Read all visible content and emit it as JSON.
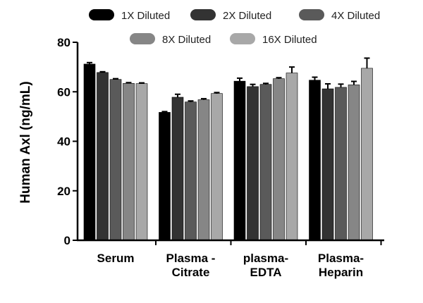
{
  "chart_data": {
    "type": "bar",
    "title": "",
    "xlabel": "",
    "ylabel": "Human Axl (ng/mL)",
    "ylim": [
      0,
      80
    ],
    "yticks": [
      0,
      20,
      40,
      60,
      80
    ],
    "grid": false,
    "legend_position": "top",
    "categories": [
      [
        "Serum"
      ],
      [
        "Plasma -",
        "Citrate"
      ],
      [
        "plasma-",
        "EDTA"
      ],
      [
        "Plasma-",
        "Heparin"
      ]
    ],
    "series": [
      {
        "name": "1X Diluted",
        "color": "#000000",
        "values": [
          71.2,
          51.7,
          64.3,
          64.7
        ],
        "errors": [
          0.6,
          0.3,
          1.2,
          1.2
        ]
      },
      {
        "name": "2X Diluted",
        "color": "#333333",
        "values": [
          67.8,
          57.8,
          62.1,
          61.2
        ],
        "errors": [
          0.3,
          1.2,
          0.9,
          2.0
        ]
      },
      {
        "name": "4X Diluted",
        "color": "#5a5a5a",
        "values": [
          65.0,
          55.9,
          63.0,
          61.8
        ],
        "errors": [
          0.3,
          0.4,
          0.4,
          1.3
        ]
      },
      {
        "name": "8X Diluted",
        "color": "#868686",
        "values": [
          63.4,
          56.8,
          65.3,
          62.8
        ],
        "errors": [
          0.3,
          0.4,
          0.4,
          1.4
        ]
      },
      {
        "name": "16X Diluted",
        "color": "#a8a8a8",
        "values": [
          63.3,
          59.3,
          67.6,
          69.5
        ],
        "errors": [
          0.3,
          0.4,
          2.4,
          4.1
        ]
      }
    ]
  }
}
